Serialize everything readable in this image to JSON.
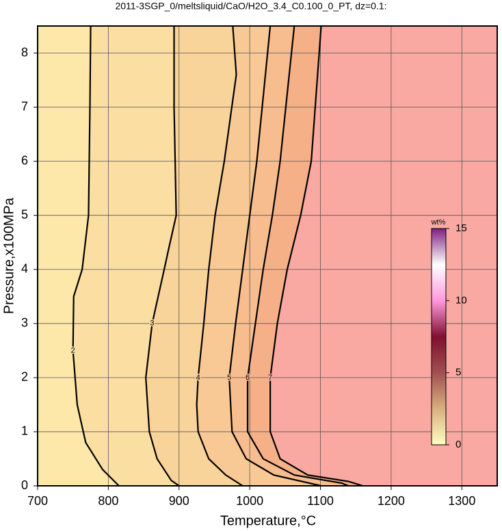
{
  "chart_data": {
    "type": "contour",
    "title": "2011-3SGP_0/meltsliquid/CaO/H2O_3.4_C0.100_0_PT, dz=0.1:",
    "x_label": "Temperature,°C",
    "y_label": "Pressure,x100MPa",
    "xlim": [
      700,
      1350
    ],
    "ylim": [
      0,
      8.5
    ],
    "xticks": [
      700,
      800,
      900,
      1000,
      1100,
      1200,
      1300
    ],
    "yticks": [
      0,
      1,
      2,
      3,
      4,
      5,
      6,
      7,
      8
    ],
    "grid": true,
    "band_colors": [
      "#fde8aa",
      "#fbdfa2",
      "#f9d49a",
      "#f8c994",
      "#f7bd8e",
      "#f6b088",
      "#f9a8a2"
    ],
    "contours": [
      {
        "level": 2,
        "x": [
          775,
          774,
          772,
          763,
          751,
          750,
          756,
          768,
          792,
          815
        ],
        "y": [
          8.5,
          7,
          5,
          4,
          3.5,
          2.5,
          1.5,
          0.8,
          0.3,
          0
        ]
      },
      {
        "level": 3,
        "x": [
          893,
          893,
          896,
          884,
          879,
          862,
          853,
          858,
          869,
          889,
          900
        ],
        "y": [
          8.5,
          7,
          5,
          4.3,
          4,
          3,
          2,
          1,
          0.5,
          0.1,
          0
        ]
      },
      {
        "level": 4,
        "x": [
          976,
          981,
          964,
          951,
          942,
          935,
          927,
          925,
          927,
          942,
          966,
          990
        ],
        "y": [
          8.5,
          7.6,
          6,
          5,
          4,
          3,
          2,
          1.5,
          1,
          0.5,
          0.2,
          0
        ]
      },
      {
        "level": 5,
        "x": [
          1029,
          1010,
          1000,
          990,
          980,
          971,
          975,
          995,
          1034,
          1101
        ],
        "y": [
          8.5,
          6,
          5,
          4,
          3,
          2,
          1,
          0.5,
          0.2,
          0
        ]
      },
      {
        "level": 6,
        "x": [
          1063,
          1043,
          1032,
          1019,
          1008,
          997,
          997,
          1019,
          1063,
          1130,
          1140
        ],
        "y": [
          8.5,
          6,
          5,
          4,
          3,
          2,
          1,
          0.5,
          0.2,
          0.05,
          0
        ]
      },
      {
        "level": 7,
        "x": [
          1101,
          1087,
          1072,
          1053,
          1039,
          1029,
          1029,
          1043,
          1082,
          1140,
          1160
        ],
        "y": [
          8.5,
          6,
          5,
          4,
          3,
          2,
          1,
          0.5,
          0.2,
          0.08,
          0
        ]
      }
    ],
    "colorbar": {
      "label": "wt%",
      "lim": [
        0,
        15
      ],
      "ticks": [
        0,
        5,
        10,
        15
      ],
      "colors": [
        "#ffffc0",
        "#d8b080",
        "#a05050",
        "#801030",
        "#ff99dd",
        "#ffffff",
        "#802080"
      ]
    }
  }
}
